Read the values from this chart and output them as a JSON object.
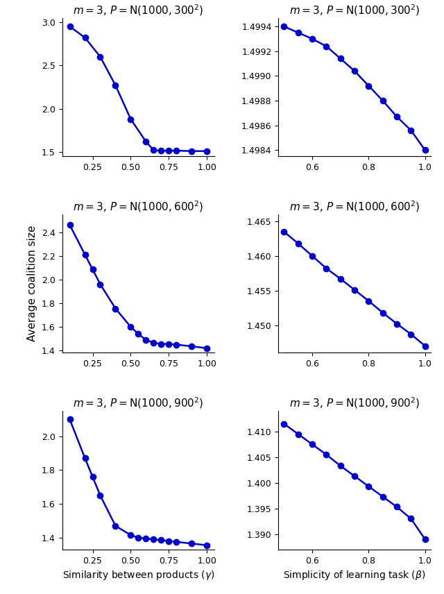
{
  "plots": [
    {
      "title": "$m = 3,\\, P = \\mathrm{N}(1000, 300^2)$",
      "x": [
        0.1,
        0.2,
        0.3,
        0.4,
        0.5,
        0.6,
        0.65,
        0.7,
        0.75,
        0.8,
        0.9,
        1.0
      ],
      "y": [
        2.95,
        2.82,
        2.6,
        2.27,
        1.88,
        1.62,
        1.52,
        1.515,
        1.515,
        1.515,
        1.51,
        1.51
      ],
      "xlabel": "",
      "ylim": [
        1.45,
        3.05
      ],
      "yticks": [
        1.5,
        2.0,
        2.5,
        3.0
      ],
      "xticks": [
        0.25,
        0.5,
        0.75,
        1.0
      ],
      "xlim": [
        0.05,
        1.05
      ]
    },
    {
      "title": "$m = 3,\\, P = \\mathrm{N}(1000, 300^2)$",
      "x": [
        0.5,
        0.55,
        0.6,
        0.65,
        0.7,
        0.75,
        0.8,
        0.85,
        0.9,
        0.95,
        1.0
      ],
      "y": [
        1.4994,
        1.49935,
        1.4993,
        1.49924,
        1.49914,
        1.49904,
        1.49892,
        1.4988,
        1.49867,
        1.49856,
        1.4984
      ],
      "xlabel": "",
      "ylim": [
        1.49835,
        1.49947
      ],
      "yticks": [
        1.4984,
        1.4986,
        1.4988,
        1.499,
        1.4992,
        1.4994
      ],
      "xticks": [
        0.6,
        0.8,
        1.0
      ],
      "xlim": [
        0.48,
        1.02
      ]
    },
    {
      "title": "$m = 3,\\, P = \\mathrm{N}(1000, 600^2)$",
      "x": [
        0.1,
        0.2,
        0.25,
        0.3,
        0.4,
        0.5,
        0.55,
        0.6,
        0.65,
        0.7,
        0.75,
        0.8,
        0.9,
        1.0
      ],
      "y": [
        2.46,
        2.21,
        2.085,
        1.96,
        1.755,
        1.6,
        1.54,
        1.49,
        1.465,
        1.455,
        1.455,
        1.45,
        1.435,
        1.42
      ],
      "xlabel": "",
      "ylim": [
        1.38,
        2.55
      ],
      "yticks": [
        1.4,
        1.6,
        1.8,
        2.0,
        2.2,
        2.4
      ],
      "xticks": [
        0.25,
        0.5,
        0.75,
        1.0
      ],
      "xlim": [
        0.05,
        1.05
      ]
    },
    {
      "title": "$m = 3,\\, P = \\mathrm{N}(1000, 600^2)$",
      "x": [
        0.5,
        0.55,
        0.6,
        0.65,
        0.7,
        0.75,
        0.8,
        0.85,
        0.9,
        0.95,
        1.0
      ],
      "y": [
        1.4635,
        1.4618,
        1.46,
        1.4582,
        1.4567,
        1.4551,
        1.4535,
        1.4518,
        1.4502,
        1.4487,
        1.447
      ],
      "xlabel": "",
      "ylim": [
        1.446,
        1.466
      ],
      "yticks": [
        1.45,
        1.455,
        1.46,
        1.465
      ],
      "xticks": [
        0.6,
        0.8,
        1.0
      ],
      "xlim": [
        0.48,
        1.02
      ]
    },
    {
      "title": "$m = 3,\\, P = \\mathrm{N}(1000, 900^2)$",
      "x": [
        0.1,
        0.2,
        0.25,
        0.3,
        0.4,
        0.5,
        0.55,
        0.6,
        0.65,
        0.7,
        0.75,
        0.8,
        0.9,
        1.0
      ],
      "y": [
        2.1,
        1.87,
        1.76,
        1.65,
        1.47,
        1.415,
        1.4,
        1.395,
        1.39,
        1.385,
        1.38,
        1.375,
        1.365,
        1.355
      ],
      "xlabel": "Similarity between products ($\\gamma$)",
      "ylim": [
        1.33,
        2.15
      ],
      "yticks": [
        1.4,
        1.6,
        1.8,
        2.0
      ],
      "xticks": [
        0.25,
        0.5,
        0.75,
        1.0
      ],
      "xlim": [
        0.05,
        1.05
      ]
    },
    {
      "title": "$m = 3,\\, P = \\mathrm{N}(1000, 900^2)$",
      "x": [
        0.5,
        0.55,
        0.6,
        0.65,
        0.7,
        0.75,
        0.8,
        0.85,
        0.9,
        0.95,
        1.0
      ],
      "y": [
        1.4115,
        1.4095,
        1.4075,
        1.4055,
        1.4033,
        1.4013,
        1.3993,
        1.3973,
        1.3953,
        1.393,
        1.389
      ],
      "xlabel": "Simplicity of learning task ($\\beta$)",
      "ylim": [
        1.387,
        1.414
      ],
      "yticks": [
        1.39,
        1.395,
        1.4,
        1.405,
        1.41
      ],
      "xticks": [
        0.6,
        0.8,
        1.0
      ],
      "xlim": [
        0.48,
        1.02
      ]
    }
  ],
  "line_color": "#0000cc",
  "marker": "o",
  "markersize": 6,
  "linewidth": 1.8,
  "ylabel": "Average coalition size",
  "title_fontsize": 11,
  "label_fontsize": 10,
  "tick_fontsize": 9
}
